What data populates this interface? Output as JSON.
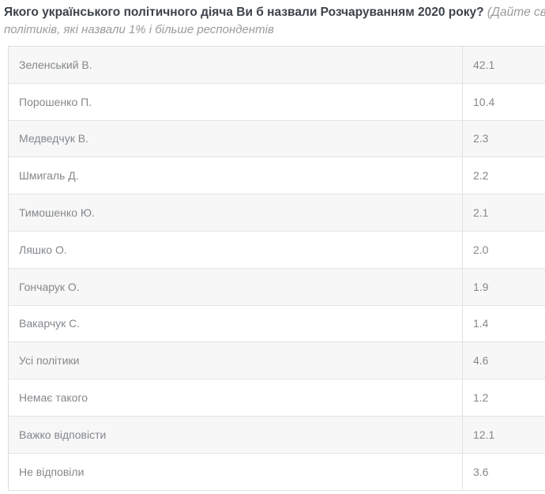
{
  "header": {
    "question_bold": "Якого українського політичного діяча Ви б назвали Розчаруванням 2020 року?",
    "question_note_fragment": "(Дайте свій",
    "note_line2": "політиків, які назвали 1% і більше респондентів"
  },
  "table": {
    "rows": [
      {
        "label": "Зеленський В.",
        "value": "42.1"
      },
      {
        "label": "Порошенко П.",
        "value": "10.4"
      },
      {
        "label": "Медведчук В.",
        "value": "2.3"
      },
      {
        "label": "Шмигаль Д.",
        "value": "2.2"
      },
      {
        "label": "Тимошенко Ю.",
        "value": "2.1"
      },
      {
        "label": "Ляшко О.",
        "value": "2.0"
      },
      {
        "label": "Гончарук О.",
        "value": "1.9"
      },
      {
        "label": "Вакарчук С.",
        "value": "1.4"
      },
      {
        "label": "Усі політики",
        "value": "4.6"
      },
      {
        "label": "Немає такого",
        "value": "1.2"
      },
      {
        "label": "Важко відповісти",
        "value": "12.1"
      },
      {
        "label": "Не відповіли",
        "value": "3.6"
      }
    ]
  },
  "chart_data": {
    "type": "table",
    "title": "Якого українського політичного діяча Ви б назвали Розчаруванням 2020 року?",
    "note_visible_fragments": [
      "(Дайте свій",
      "політиків, які назвали 1% і більше респондентів"
    ],
    "categories": [
      "Зеленський В.",
      "Порошенко П.",
      "Медведчук В.",
      "Шмигаль Д.",
      "Тимошенко Ю.",
      "Ляшко О.",
      "Гончарук О.",
      "Вакарчук С.",
      "Усі політики",
      "Немає такого",
      "Важко відповісти",
      "Не відповіли"
    ],
    "values": [
      42.1,
      10.4,
      2.3,
      2.2,
      2.1,
      2.0,
      1.9,
      1.4,
      4.6,
      1.2,
      12.1,
      3.6
    ],
    "unit": "%",
    "legend_position": "none",
    "grid": false
  },
  "colors": {
    "title_text": "#3d434b",
    "note_text": "#9b9b9b",
    "row_text": "#84888c",
    "row_alt_bg": "#f7f7f7",
    "border": "#e2e2e2"
  }
}
